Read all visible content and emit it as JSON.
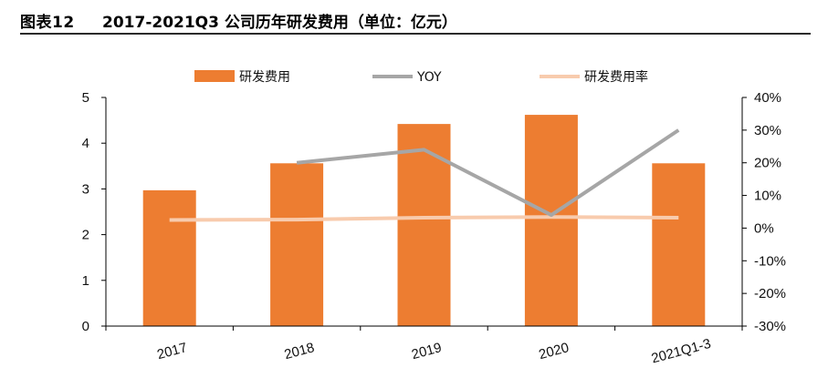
{
  "header": {
    "figure_label": "图表12",
    "figure_title": "2017-2021Q3 公司历年研发费用（单位：亿元）"
  },
  "colors": {
    "bar": "#ED7D31",
    "yoy": "#A6A6A6",
    "rate": "#F8CBAD",
    "axis": "#000000"
  },
  "chart_data": {
    "type": "bar",
    "categories": [
      "2017",
      "2018",
      "2019",
      "2020",
      "2021Q1-3"
    ],
    "series": [
      {
        "name": "研发费用",
        "type": "bar",
        "axis": "left",
        "values": [
          2.97,
          3.56,
          4.42,
          4.62,
          3.56
        ]
      },
      {
        "name": "YOY",
        "type": "line",
        "axis": "right",
        "values": [
          null,
          0.2,
          0.24,
          0.04,
          0.3
        ]
      },
      {
        "name": "研发费用率",
        "type": "line",
        "axis": "right",
        "values": [
          0.025,
          0.026,
          0.032,
          0.034,
          0.032
        ]
      }
    ],
    "y_left": {
      "ylim": [
        0,
        5
      ],
      "ticks": [
        "0",
        "1",
        "2",
        "3",
        "4",
        "5"
      ]
    },
    "y_right": {
      "ylim": [
        -0.3,
        0.4
      ],
      "ticks": [
        "-30%",
        "-20%",
        "-10%",
        "0%",
        "10%",
        "20%",
        "30%",
        "40%"
      ]
    },
    "legend": {
      "placement": "top",
      "entries": [
        "研发费用",
        "YOY",
        "研发费用率"
      ]
    },
    "grid": false
  }
}
